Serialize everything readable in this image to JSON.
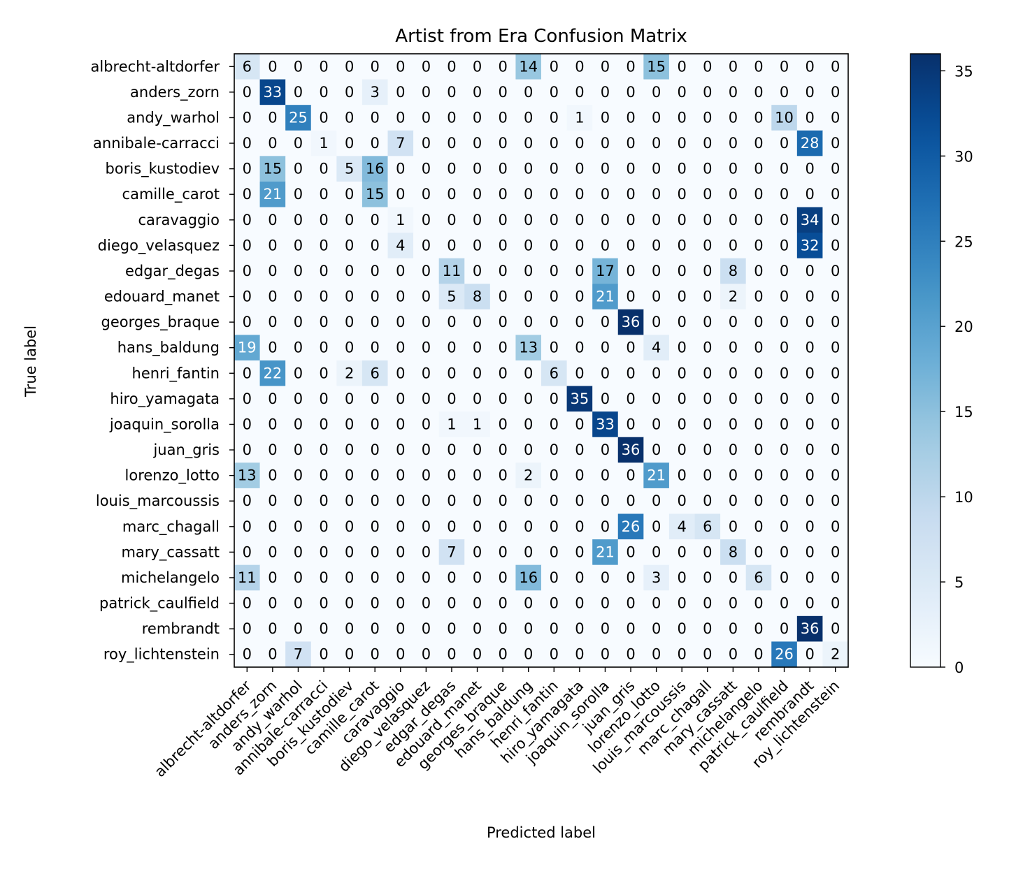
{
  "chart_data": {
    "type": "heatmap",
    "title": "Artist from Era Confusion Matrix",
    "xlabel": "Predicted label",
    "ylabel": "True label",
    "colormap": "Blues",
    "colors": {
      "low": "#f7fbff",
      "high": "#08306b",
      "text_dark": "#000000",
      "text_light": "#ffffff"
    },
    "color_range": [
      0,
      36
    ],
    "colorbar_ticks": [
      0,
      5,
      10,
      15,
      20,
      25,
      30,
      35
    ],
    "labels": [
      "albrecht-altdorfer",
      "anders_zorn",
      "andy_warhol",
      "annibale-carracci",
      "boris_kustodiev",
      "camille_carot",
      "caravaggio",
      "diego_velasquez",
      "edgar_degas",
      "edouard_manet",
      "georges_braque",
      "hans_baldung",
      "henri_fantin",
      "hiro_yamagata",
      "joaquin_sorolla",
      "juan_gris",
      "lorenzo_lotto",
      "louis_marcoussis",
      "marc_chagall",
      "mary_cassatt",
      "michelangelo",
      "patrick_caulfield",
      "rembrandt",
      "roy_lichtenstein"
    ],
    "matrix": [
      [
        6,
        0,
        0,
        0,
        0,
        0,
        0,
        0,
        0,
        0,
        0,
        14,
        0,
        0,
        0,
        0,
        15,
        0,
        0,
        0,
        0,
        0,
        0,
        0
      ],
      [
        0,
        33,
        0,
        0,
        0,
        3,
        0,
        0,
        0,
        0,
        0,
        0,
        0,
        0,
        0,
        0,
        0,
        0,
        0,
        0,
        0,
        0,
        0,
        0
      ],
      [
        0,
        0,
        25,
        0,
        0,
        0,
        0,
        0,
        0,
        0,
        0,
        0,
        0,
        1,
        0,
        0,
        0,
        0,
        0,
        0,
        0,
        10,
        0,
        0
      ],
      [
        0,
        0,
        0,
        1,
        0,
        0,
        7,
        0,
        0,
        0,
        0,
        0,
        0,
        0,
        0,
        0,
        0,
        0,
        0,
        0,
        0,
        0,
        28,
        0
      ],
      [
        0,
        15,
        0,
        0,
        5,
        16,
        0,
        0,
        0,
        0,
        0,
        0,
        0,
        0,
        0,
        0,
        0,
        0,
        0,
        0,
        0,
        0,
        0,
        0
      ],
      [
        0,
        21,
        0,
        0,
        0,
        15,
        0,
        0,
        0,
        0,
        0,
        0,
        0,
        0,
        0,
        0,
        0,
        0,
        0,
        0,
        0,
        0,
        0,
        0
      ],
      [
        0,
        0,
        0,
        0,
        0,
        0,
        1,
        0,
        0,
        0,
        0,
        0,
        0,
        0,
        0,
        0,
        0,
        0,
        0,
        0,
        0,
        0,
        34,
        0
      ],
      [
        0,
        0,
        0,
        0,
        0,
        0,
        4,
        0,
        0,
        0,
        0,
        0,
        0,
        0,
        0,
        0,
        0,
        0,
        0,
        0,
        0,
        0,
        32,
        0
      ],
      [
        0,
        0,
        0,
        0,
        0,
        0,
        0,
        0,
        11,
        0,
        0,
        0,
        0,
        0,
        17,
        0,
        0,
        0,
        0,
        8,
        0,
        0,
        0,
        0
      ],
      [
        0,
        0,
        0,
        0,
        0,
        0,
        0,
        0,
        5,
        8,
        0,
        0,
        0,
        0,
        21,
        0,
        0,
        0,
        0,
        2,
        0,
        0,
        0,
        0
      ],
      [
        0,
        0,
        0,
        0,
        0,
        0,
        0,
        0,
        0,
        0,
        0,
        0,
        0,
        0,
        0,
        36,
        0,
        0,
        0,
        0,
        0,
        0,
        0,
        0
      ],
      [
        19,
        0,
        0,
        0,
        0,
        0,
        0,
        0,
        0,
        0,
        0,
        13,
        0,
        0,
        0,
        0,
        4,
        0,
        0,
        0,
        0,
        0,
        0,
        0
      ],
      [
        0,
        22,
        0,
        0,
        2,
        6,
        0,
        0,
        0,
        0,
        0,
        0,
        6,
        0,
        0,
        0,
        0,
        0,
        0,
        0,
        0,
        0,
        0,
        0
      ],
      [
        0,
        0,
        0,
        0,
        0,
        0,
        0,
        0,
        0,
        0,
        0,
        0,
        0,
        35,
        0,
        0,
        0,
        0,
        0,
        0,
        0,
        0,
        0,
        0
      ],
      [
        0,
        0,
        0,
        0,
        0,
        0,
        0,
        0,
        1,
        1,
        0,
        0,
        0,
        0,
        33,
        0,
        0,
        0,
        0,
        0,
        0,
        0,
        0,
        0
      ],
      [
        0,
        0,
        0,
        0,
        0,
        0,
        0,
        0,
        0,
        0,
        0,
        0,
        0,
        0,
        0,
        36,
        0,
        0,
        0,
        0,
        0,
        0,
        0,
        0
      ],
      [
        13,
        0,
        0,
        0,
        0,
        0,
        0,
        0,
        0,
        0,
        0,
        2,
        0,
        0,
        0,
        0,
        21,
        0,
        0,
        0,
        0,
        0,
        0,
        0
      ],
      [
        0,
        0,
        0,
        0,
        0,
        0,
        0,
        0,
        0,
        0,
        0,
        0,
        0,
        0,
        0,
        0,
        0,
        0,
        0,
        0,
        0,
        0,
        0,
        0
      ],
      [
        0,
        0,
        0,
        0,
        0,
        0,
        0,
        0,
        0,
        0,
        0,
        0,
        0,
        0,
        0,
        26,
        0,
        4,
        6,
        0,
        0,
        0,
        0,
        0
      ],
      [
        0,
        0,
        0,
        0,
        0,
        0,
        0,
        0,
        7,
        0,
        0,
        0,
        0,
        0,
        21,
        0,
        0,
        0,
        0,
        8,
        0,
        0,
        0,
        0
      ],
      [
        11,
        0,
        0,
        0,
        0,
        0,
        0,
        0,
        0,
        0,
        0,
        16,
        0,
        0,
        0,
        0,
        3,
        0,
        0,
        0,
        6,
        0,
        0,
        0
      ],
      [
        0,
        0,
        0,
        0,
        0,
        0,
        0,
        0,
        0,
        0,
        0,
        0,
        0,
        0,
        0,
        0,
        0,
        0,
        0,
        0,
        0,
        0,
        0,
        0
      ],
      [
        0,
        0,
        0,
        0,
        0,
        0,
        0,
        0,
        0,
        0,
        0,
        0,
        0,
        0,
        0,
        0,
        0,
        0,
        0,
        0,
        0,
        0,
        36,
        0
      ],
      [
        0,
        0,
        7,
        0,
        0,
        0,
        0,
        0,
        0,
        0,
        0,
        0,
        0,
        0,
        0,
        0,
        0,
        0,
        0,
        0,
        0,
        26,
        0,
        2
      ]
    ]
  }
}
